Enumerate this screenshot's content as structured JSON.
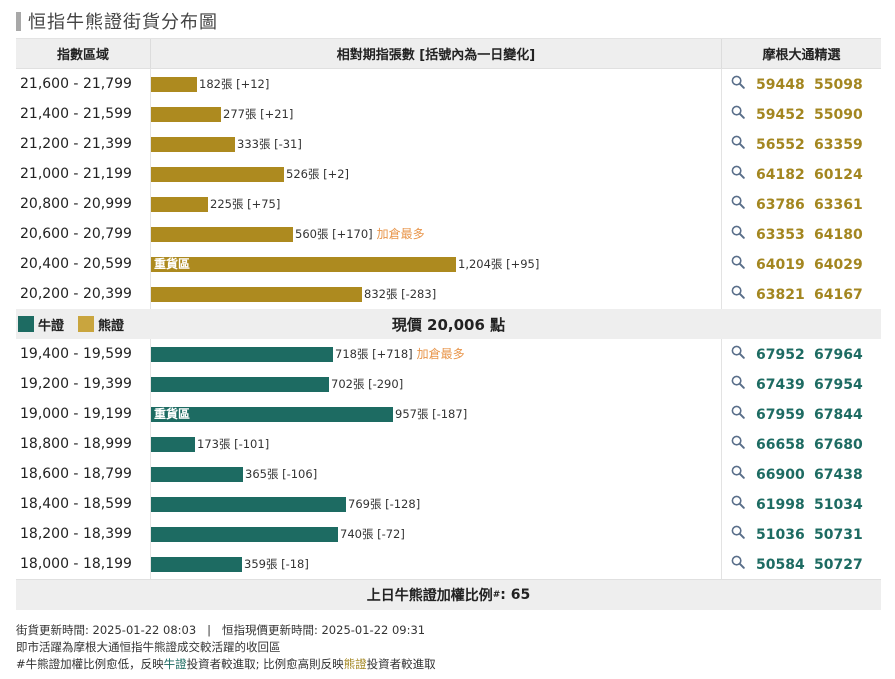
{
  "title": "恒指牛熊證街貨分布圖",
  "header": {
    "col_range": "指數區域",
    "col_bars": "相對期指張數 [括號內為一日變化]",
    "col_picks": "摩根大通精選"
  },
  "bear_rows": [
    {
      "range": "21,600 - 21,799",
      "count": 182,
      "label": "182張 [+12]",
      "note": "",
      "tag": "",
      "codes": [
        "59448",
        "55098"
      ]
    },
    {
      "range": "21,400 - 21,599",
      "count": 277,
      "label": "277張 [+21]",
      "note": "",
      "tag": "",
      "codes": [
        "59452",
        "55090"
      ]
    },
    {
      "range": "21,200 - 21,399",
      "count": 333,
      "label": "333張 [-31]",
      "note": "",
      "tag": "",
      "codes": [
        "56552",
        "63359"
      ]
    },
    {
      "range": "21,000 - 21,199",
      "count": 526,
      "label": "526張 [+2]",
      "note": "",
      "tag": "",
      "codes": [
        "64182",
        "60124"
      ]
    },
    {
      "range": "20,800 - 20,999",
      "count": 225,
      "label": "225張 [+75]",
      "note": "",
      "tag": "",
      "codes": [
        "63786",
        "63361"
      ]
    },
    {
      "range": "20,600 - 20,799",
      "count": 560,
      "label": "560張 [+170]",
      "note": "加倉最多",
      "tag": "",
      "codes": [
        "63353",
        "64180"
      ]
    },
    {
      "range": "20,400 - 20,599",
      "count": 1204,
      "label": "1,204張 [+95]",
      "note": "",
      "tag": "重貨區",
      "codes": [
        "64019",
        "64029"
      ]
    },
    {
      "range": "20,200 - 20,399",
      "count": 832,
      "label": "832張 [-283]",
      "note": "",
      "tag": "",
      "codes": [
        "63821",
        "64167"
      ]
    }
  ],
  "legend": {
    "bull": "牛證",
    "bear": "熊證"
  },
  "current_price": "現價 20,006 點",
  "bull_rows": [
    {
      "range": "19,400 - 19,599",
      "count": 718,
      "label": "718張 [+718]",
      "note": "加倉最多",
      "tag": "",
      "codes": [
        "67952",
        "67964"
      ]
    },
    {
      "range": "19,200 - 19,399",
      "count": 702,
      "label": "702張 [-290]",
      "note": "",
      "tag": "",
      "codes": [
        "67439",
        "67954"
      ]
    },
    {
      "range": "19,000 - 19,199",
      "count": 957,
      "label": "957張 [-187]",
      "note": "",
      "tag": "重貨區",
      "codes": [
        "67959",
        "67844"
      ]
    },
    {
      "range": "18,800 - 18,999",
      "count": 173,
      "label": "173張 [-101]",
      "note": "",
      "tag": "",
      "codes": [
        "66658",
        "67680"
      ]
    },
    {
      "range": "18,600 - 18,799",
      "count": 365,
      "label": "365張 [-106]",
      "note": "",
      "tag": "",
      "codes": [
        "66900",
        "67438"
      ]
    },
    {
      "range": "18,400 - 18,599",
      "count": 769,
      "label": "769張 [-128]",
      "note": "",
      "tag": "",
      "codes": [
        "61998",
        "51034"
      ]
    },
    {
      "range": "18,200 - 18,399",
      "count": 740,
      "label": "740張 [-72]",
      "note": "",
      "tag": "",
      "codes": [
        "51036",
        "50731"
      ]
    },
    {
      "range": "18,000 - 18,199",
      "count": 359,
      "label": "359張 [-18]",
      "note": "",
      "tag": "",
      "codes": [
        "50584",
        "50727"
      ]
    }
  ],
  "weighted_ratio": {
    "label": "上日牛熊證加權比例",
    "mark": "#",
    "value": ": 65"
  },
  "notes": {
    "line1": "街貨更新時間: 2025-01-22 08:03   |   恒指現價更新時間: 2025-01-22 09:31",
    "line2": "即市活躍為摩根大通恒指牛熊證成交較活躍的收回區",
    "line3_a": "#牛熊證加權比例愈低，反映",
    "line3_bull": "牛證",
    "line3_b": "投資者較進取; 比例愈高則反映",
    "line3_bear": "熊證",
    "line3_c": "投資者較進取"
  },
  "colors": {
    "bull": "#1d6b62",
    "bear": "#ad8a1f",
    "note": "#e8954a"
  },
  "icons": {
    "pick": "search-icon"
  }
}
